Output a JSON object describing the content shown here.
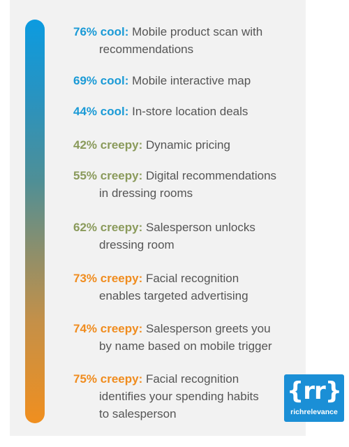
{
  "colors": {
    "cool": "#1a9ad6",
    "creepy_mid": "#8a9a5b",
    "creepy_high": "#f08c1e",
    "logo_bg": "#1b8fd6"
  },
  "items": [
    {
      "stat": "76% cool:",
      "text": "Mobile product scan with",
      "cont": "recommendations",
      "tone": "cool"
    },
    {
      "stat": "69% cool:",
      "text": "Mobile interactive map",
      "cont": "",
      "tone": "cool"
    },
    {
      "stat": "44% cool:",
      "text": "In-store location deals",
      "cont": "",
      "tone": "cool"
    },
    {
      "stat": "42% creepy:",
      "text": "Dynamic pricing",
      "cont": "",
      "tone": "creepy_mid"
    },
    {
      "stat": "55% creepy:",
      "text": "Digital recommendations",
      "cont": "in dressing rooms",
      "tone": "creepy_mid"
    },
    {
      "stat": "62% creepy:",
      "text": "Salesperson unlocks",
      "cont": "dressing room",
      "tone": "creepy_mid"
    },
    {
      "stat": "73% creepy:",
      "text": "Facial recognition",
      "cont": "enables targeted advertising",
      "tone": "creepy_high"
    },
    {
      "stat": "74% creepy:",
      "text": "Salesperson greets you",
      "cont": "by name based on mobile trigger",
      "tone": "creepy_high"
    },
    {
      "stat": "75% creepy:",
      "text": "Facial recognition",
      "cont": "identifies your spending habits",
      "cont2": "to salesperson",
      "tone": "creepy_high"
    }
  ],
  "logo": {
    "mark": "{rr}",
    "text": "richrelevance"
  }
}
